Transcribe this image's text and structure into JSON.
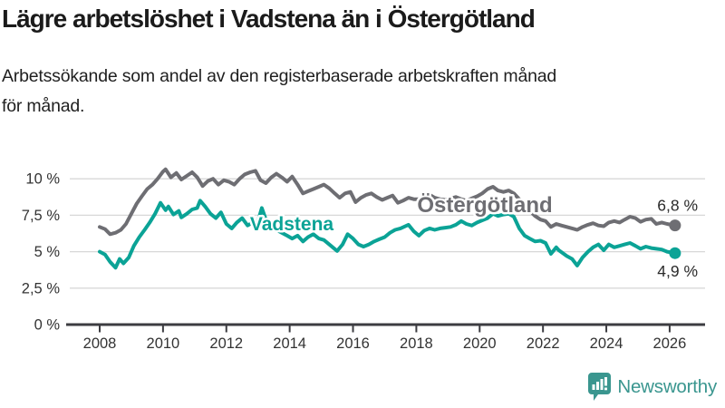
{
  "title": "Lägre arbetslöshet i Vadstena än i Östergötland",
  "subtitle": "Arbetssökande som andel av den registerbaserade arbetskraften månad för månad.",
  "subtitle_lines": [
    "Arbetssökande som andel av den registerbaserade arbetskraften månad",
    "för månad."
  ],
  "footer": {
    "logo_text": "Newsworthy"
  },
  "colors": {
    "ostergotland": "#6E6E73",
    "vadstena": "#0BA396",
    "grid": "#D8D8D8",
    "axis": "#3C3C41",
    "axis_text": "#333333",
    "end_label_text": "#2A2A2A",
    "logo": "#3A968F"
  },
  "chart_data": {
    "type": "line",
    "title": "Lägre arbetslöshet i Vadstena än i Östergötland",
    "xlabel": "",
    "ylabel": "",
    "x_unit": "year (monthly observations)",
    "ylim": [
      0,
      11
    ],
    "xlim": [
      2008,
      2026.2
    ],
    "grid": "horizontal",
    "legend": "inline-labels",
    "yticks": [
      {
        "value": 0,
        "label": "0 %"
      },
      {
        "value": 2.5,
        "label": "2,5 %"
      },
      {
        "value": 5,
        "label": "5 %"
      },
      {
        "value": 7.5,
        "label": "7,5 %"
      },
      {
        "value": 10,
        "label": "10 %"
      }
    ],
    "xticks": [
      {
        "value": 2008,
        "label": "2008"
      },
      {
        "value": 2010,
        "label": "2010"
      },
      {
        "value": 2012,
        "label": "2012"
      },
      {
        "value": 2014,
        "label": "2014"
      },
      {
        "value": 2016,
        "label": "2016"
      },
      {
        "value": 2018,
        "label": "2018"
      },
      {
        "value": 2020,
        "label": "2020"
      },
      {
        "value": 2022,
        "label": "2022"
      },
      {
        "value": 2024,
        "label": "2024"
      },
      {
        "value": 2026,
        "label": "2026"
      }
    ],
    "series": [
      {
        "name": "Östergötland",
        "color": "#6E6E73",
        "end_value": 6.8,
        "end_label": "6,8 %",
        "points": [
          [
            2008.0,
            6.7
          ],
          [
            2008.17,
            6.55
          ],
          [
            2008.33,
            6.2
          ],
          [
            2008.5,
            6.3
          ],
          [
            2008.67,
            6.5
          ],
          [
            2008.83,
            6.9
          ],
          [
            2009.0,
            7.6
          ],
          [
            2009.17,
            8.3
          ],
          [
            2009.33,
            8.8
          ],
          [
            2009.5,
            9.3
          ],
          [
            2009.67,
            9.6
          ],
          [
            2009.83,
            10.0
          ],
          [
            2010.0,
            10.5
          ],
          [
            2010.08,
            10.65
          ],
          [
            2010.25,
            10.1
          ],
          [
            2010.42,
            10.4
          ],
          [
            2010.58,
            9.95
          ],
          [
            2010.75,
            10.2
          ],
          [
            2010.92,
            10.45
          ],
          [
            2011.08,
            10.1
          ],
          [
            2011.25,
            9.5
          ],
          [
            2011.42,
            9.85
          ],
          [
            2011.58,
            10.0
          ],
          [
            2011.75,
            9.6
          ],
          [
            2011.92,
            9.9
          ],
          [
            2012.08,
            9.8
          ],
          [
            2012.25,
            9.6
          ],
          [
            2012.42,
            10.0
          ],
          [
            2012.58,
            10.3
          ],
          [
            2012.75,
            10.45
          ],
          [
            2012.92,
            10.55
          ],
          [
            2013.08,
            9.9
          ],
          [
            2013.25,
            9.7
          ],
          [
            2013.42,
            10.1
          ],
          [
            2013.58,
            10.35
          ],
          [
            2013.75,
            10.1
          ],
          [
            2013.92,
            9.8
          ],
          [
            2014.08,
            10.15
          ],
          [
            2014.25,
            9.6
          ],
          [
            2014.42,
            9.0
          ],
          [
            2014.58,
            9.15
          ],
          [
            2014.75,
            9.3
          ],
          [
            2014.92,
            9.45
          ],
          [
            2015.08,
            9.6
          ],
          [
            2015.25,
            9.35
          ],
          [
            2015.42,
            9.0
          ],
          [
            2015.58,
            8.7
          ],
          [
            2015.75,
            9.0
          ],
          [
            2015.92,
            9.1
          ],
          [
            2016.08,
            8.4
          ],
          [
            2016.25,
            8.7
          ],
          [
            2016.42,
            8.9
          ],
          [
            2016.58,
            9.0
          ],
          [
            2016.75,
            8.75
          ],
          [
            2016.92,
            8.55
          ],
          [
            2017.08,
            8.7
          ],
          [
            2017.25,
            8.85
          ],
          [
            2017.42,
            8.35
          ],
          [
            2017.58,
            8.5
          ],
          [
            2017.75,
            8.7
          ],
          [
            2017.92,
            8.6
          ],
          [
            2018.08,
            8.6
          ],
          [
            2018.25,
            8.75
          ],
          [
            2018.42,
            8.9
          ],
          [
            2018.58,
            8.7
          ],
          [
            2018.75,
            8.6
          ],
          [
            2018.92,
            8.55
          ],
          [
            2019.08,
            8.65
          ],
          [
            2019.25,
            8.75
          ],
          [
            2019.42,
            8.6
          ],
          [
            2019.58,
            8.5
          ],
          [
            2019.75,
            8.65
          ],
          [
            2019.92,
            8.8
          ],
          [
            2020.08,
            9.0
          ],
          [
            2020.25,
            9.3
          ],
          [
            2020.42,
            9.45
          ],
          [
            2020.58,
            9.2
          ],
          [
            2020.75,
            9.1
          ],
          [
            2020.92,
            9.2
          ],
          [
            2021.08,
            9.0
          ],
          [
            2021.25,
            8.6
          ],
          [
            2021.42,
            8.2
          ],
          [
            2021.58,
            7.8
          ],
          [
            2021.75,
            7.45
          ],
          [
            2021.92,
            7.2
          ],
          [
            2022.08,
            7.1
          ],
          [
            2022.25,
            6.7
          ],
          [
            2022.42,
            6.9
          ],
          [
            2022.58,
            6.8
          ],
          [
            2022.75,
            6.7
          ],
          [
            2022.92,
            6.6
          ],
          [
            2023.08,
            6.5
          ],
          [
            2023.25,
            6.7
          ],
          [
            2023.42,
            6.85
          ],
          [
            2023.58,
            6.95
          ],
          [
            2023.75,
            6.8
          ],
          [
            2023.92,
            6.75
          ],
          [
            2024.08,
            7.0
          ],
          [
            2024.25,
            7.1
          ],
          [
            2024.42,
            7.0
          ],
          [
            2024.58,
            7.2
          ],
          [
            2024.75,
            7.4
          ],
          [
            2024.92,
            7.3
          ],
          [
            2025.08,
            7.05
          ],
          [
            2025.25,
            7.2
          ],
          [
            2025.42,
            7.25
          ],
          [
            2025.58,
            6.9
          ],
          [
            2025.75,
            7.0
          ],
          [
            2025.92,
            6.9
          ],
          [
            2026.17,
            6.8
          ]
        ]
      },
      {
        "name": "Vadstena",
        "color": "#0BA396",
        "end_value": 4.9,
        "end_label": "4,9 %",
        "points": [
          [
            2008.0,
            5.0
          ],
          [
            2008.17,
            4.8
          ],
          [
            2008.33,
            4.3
          ],
          [
            2008.5,
            3.9
          ],
          [
            2008.63,
            4.5
          ],
          [
            2008.75,
            4.2
          ],
          [
            2008.92,
            4.6
          ],
          [
            2009.08,
            5.4
          ],
          [
            2009.25,
            6.0
          ],
          [
            2009.42,
            6.5
          ],
          [
            2009.58,
            7.0
          ],
          [
            2009.75,
            7.6
          ],
          [
            2009.92,
            8.35
          ],
          [
            2010.08,
            7.85
          ],
          [
            2010.17,
            8.1
          ],
          [
            2010.33,
            7.55
          ],
          [
            2010.5,
            7.8
          ],
          [
            2010.58,
            7.35
          ],
          [
            2010.75,
            7.6
          ],
          [
            2010.92,
            7.9
          ],
          [
            2011.08,
            8.0
          ],
          [
            2011.17,
            8.5
          ],
          [
            2011.33,
            8.1
          ],
          [
            2011.5,
            7.6
          ],
          [
            2011.67,
            7.3
          ],
          [
            2011.83,
            7.7
          ],
          [
            2012.0,
            6.9
          ],
          [
            2012.17,
            6.6
          ],
          [
            2012.33,
            7.0
          ],
          [
            2012.5,
            7.3
          ],
          [
            2012.67,
            6.8
          ],
          [
            2012.83,
            7.0
          ],
          [
            2013.0,
            7.1
          ],
          [
            2013.12,
            8.0
          ],
          [
            2013.25,
            7.2
          ],
          [
            2013.42,
            6.7
          ],
          [
            2013.58,
            6.5
          ],
          [
            2013.75,
            6.3
          ],
          [
            2013.92,
            6.1
          ],
          [
            2014.08,
            5.9
          ],
          [
            2014.25,
            6.1
          ],
          [
            2014.42,
            5.7
          ],
          [
            2014.58,
            6.0
          ],
          [
            2014.75,
            6.2
          ],
          [
            2014.92,
            5.9
          ],
          [
            2015.08,
            5.8
          ],
          [
            2015.25,
            5.5
          ],
          [
            2015.5,
            5.05
          ],
          [
            2015.67,
            5.5
          ],
          [
            2015.83,
            6.2
          ],
          [
            2016.0,
            5.9
          ],
          [
            2016.17,
            5.5
          ],
          [
            2016.33,
            5.35
          ],
          [
            2016.5,
            5.5
          ],
          [
            2016.67,
            5.7
          ],
          [
            2016.83,
            5.85
          ],
          [
            2017.0,
            6.0
          ],
          [
            2017.17,
            6.3
          ],
          [
            2017.33,
            6.5
          ],
          [
            2017.5,
            6.6
          ],
          [
            2017.75,
            6.85
          ],
          [
            2017.92,
            6.4
          ],
          [
            2018.08,
            6.1
          ],
          [
            2018.25,
            6.45
          ],
          [
            2018.42,
            6.6
          ],
          [
            2018.58,
            6.5
          ],
          [
            2018.75,
            6.6
          ],
          [
            2018.92,
            6.65
          ],
          [
            2019.08,
            6.7
          ],
          [
            2019.25,
            6.85
          ],
          [
            2019.42,
            7.1
          ],
          [
            2019.58,
            6.9
          ],
          [
            2019.75,
            6.8
          ],
          [
            2019.92,
            7.0
          ],
          [
            2020.08,
            7.15
          ],
          [
            2020.25,
            7.3
          ],
          [
            2020.42,
            7.6
          ],
          [
            2020.58,
            7.45
          ],
          [
            2020.75,
            7.55
          ],
          [
            2020.92,
            7.6
          ],
          [
            2021.08,
            7.4
          ],
          [
            2021.25,
            6.6
          ],
          [
            2021.42,
            6.1
          ],
          [
            2021.58,
            5.9
          ],
          [
            2021.75,
            5.7
          ],
          [
            2021.92,
            5.75
          ],
          [
            2022.08,
            5.6
          ],
          [
            2022.25,
            4.85
          ],
          [
            2022.42,
            5.3
          ],
          [
            2022.5,
            5.1
          ],
          [
            2022.75,
            4.7
          ],
          [
            2022.92,
            4.5
          ],
          [
            2023.08,
            4.05
          ],
          [
            2023.25,
            4.6
          ],
          [
            2023.42,
            5.0
          ],
          [
            2023.58,
            5.3
          ],
          [
            2023.75,
            5.5
          ],
          [
            2023.92,
            5.1
          ],
          [
            2024.08,
            5.5
          ],
          [
            2024.25,
            5.3
          ],
          [
            2024.42,
            5.4
          ],
          [
            2024.58,
            5.5
          ],
          [
            2024.75,
            5.6
          ],
          [
            2024.92,
            5.4
          ],
          [
            2025.08,
            5.2
          ],
          [
            2025.25,
            5.35
          ],
          [
            2025.42,
            5.25
          ],
          [
            2025.58,
            5.2
          ],
          [
            2025.75,
            5.15
          ],
          [
            2025.92,
            5.0
          ],
          [
            2026.17,
            4.9
          ]
        ]
      }
    ]
  }
}
